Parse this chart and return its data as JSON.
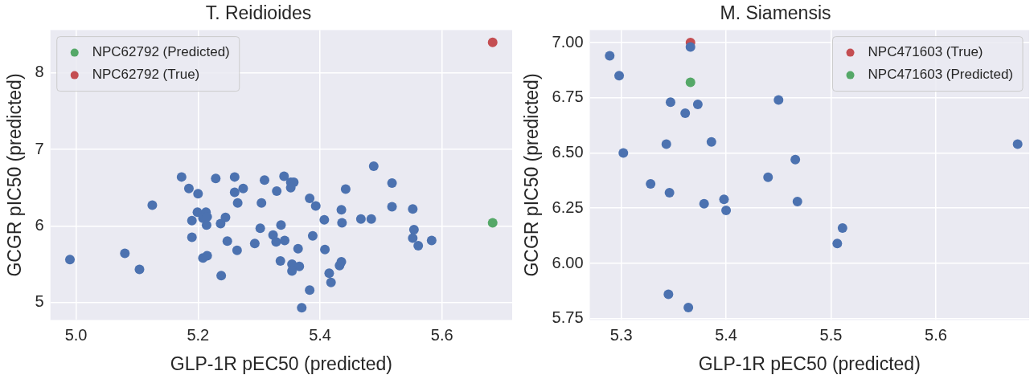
{
  "chart_data": [
    {
      "type": "scatter",
      "title": "T. Reidioides",
      "xlabel": "GLP-1R pEC50 (predicted)",
      "ylabel": "GCGR pIC50 (predicted)",
      "xlim": [
        4.958,
        5.715
      ],
      "ylim": [
        4.77,
        8.56
      ],
      "xticks": [
        {
          "value": 5,
          "label": "5.0"
        },
        {
          "value": 5.2,
          "label": "5.2"
        },
        {
          "value": 5.4,
          "label": "5.4"
        },
        {
          "value": 5.6,
          "label": "5.6"
        }
      ],
      "yticks": [
        5,
        6,
        7,
        8
      ],
      "grid": true,
      "legend": "top left",
      "marker": "circle",
      "series": [
        {
          "color": "#4c72b0",
          "x": [
            4.99,
            5.08,
            5.104,
            5.125,
            5.173,
            5.185,
            5.2,
            5.19,
            5.19,
            5.199,
            5.213,
            5.208,
            5.215,
            5.214,
            5.208,
            5.215,
            5.229,
            5.238,
            5.237,
            5.245,
            5.248,
            5.26,
            5.26,
            5.274,
            5.265,
            5.264,
            5.293,
            5.302,
            5.304,
            5.309,
            5.329,
            5.341,
            5.352,
            5.357,
            5.352,
            5.323,
            5.328,
            5.342,
            5.336,
            5.335,
            5.354,
            5.366,
            5.354,
            5.364,
            5.37,
            5.383,
            5.393,
            5.388,
            5.383,
            5.407,
            5.408,
            5.415,
            5.418,
            5.432,
            5.435,
            5.442,
            5.435,
            5.436,
            5.467,
            5.484,
            5.488,
            5.518,
            5.518,
            5.552,
            5.554,
            5.552,
            5.561,
            5.583
          ],
          "values": [
            5.56,
            5.64,
            5.43,
            6.27,
            6.64,
            6.49,
            6.42,
            6.07,
            5.85,
            6.18,
            6.18,
            6.1,
            6.12,
            6.01,
            5.58,
            5.61,
            6.62,
            5.35,
            6.03,
            6.11,
            5.8,
            6.64,
            6.44,
            6.49,
            6.3,
            5.68,
            5.77,
            5.97,
            6.3,
            6.6,
            6.455,
            6.65,
            6.57,
            6.57,
            6.5,
            5.88,
            5.79,
            5.81,
            6.01,
            5.54,
            5.5,
            5.47,
            5.41,
            5.7,
            4.93,
            6.36,
            6.26,
            5.87,
            5.16,
            6.08,
            5.69,
            5.38,
            5.26,
            5.48,
            5.53,
            6.48,
            6.21,
            6.04,
            6.09,
            6.09,
            6.78,
            6.56,
            6.25,
            6.22,
            5.95,
            5.84,
            5.74,
            5.81
          ]
        },
        {
          "name": "NPC62792 (Predicted)",
          "color": "#55a868",
          "x": [
            5.683
          ],
          "values": [
            6.04
          ]
        },
        {
          "name": "NPC62792 (True)",
          "color": "#c44e52",
          "x": [
            5.683
          ],
          "values": [
            8.4
          ]
        }
      ]
    },
    {
      "type": "scatter",
      "title": "M. Siamensis",
      "xlabel": "GLP-1R pEC50 (predicted)",
      "ylabel": "GCGR pIC50 (predicted)",
      "xlim": [
        5.27,
        5.689
      ],
      "ylim": [
        5.744,
        7.056
      ],
      "xticks": [
        5.3,
        5.4,
        5.5,
        5.6
      ],
      "yticks": [
        {
          "value": 5.75,
          "label": "5.75"
        },
        {
          "value": 6,
          "label": "6.00"
        },
        {
          "value": 6.25,
          "label": "6.25"
        },
        {
          "value": 6.5,
          "label": "6.50"
        },
        {
          "value": 6.75,
          "label": "6.75"
        },
        {
          "value": 7,
          "label": "7.00"
        }
      ],
      "grid": true,
      "legend": "top right",
      "marker": "circle",
      "series": [
        {
          "color": "#4c72b0",
          "x": [
            5.289,
            5.298,
            5.302,
            5.328,
            5.343,
            5.347,
            5.346,
            5.345,
            5.364,
            5.361,
            5.366,
            5.373,
            5.386,
            5.379,
            5.398,
            5.4,
            5.44,
            5.45,
            5.466,
            5.468,
            5.511,
            5.506,
            5.678
          ],
          "values": [
            6.94,
            6.85,
            6.5,
            6.36,
            6.54,
            6.73,
            6.32,
            5.86,
            5.8,
            6.68,
            6.98,
            6.72,
            6.55,
            6.27,
            6.29,
            6.24,
            6.39,
            6.74,
            6.47,
            6.28,
            6.16,
            6.09,
            6.54
          ]
        },
        {
          "name": "NPC471603 (True)",
          "color": "#c44e52",
          "x": [
            5.366
          ],
          "values": [
            7.0
          ]
        },
        {
          "name": "NPC471603 (Predicted)",
          "color": "#55a868",
          "x": [
            5.366
          ],
          "values": [
            6.82
          ]
        }
      ]
    }
  ]
}
